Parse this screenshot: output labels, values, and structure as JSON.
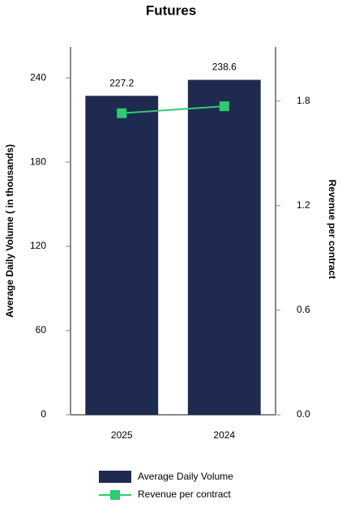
{
  "chart_data": {
    "type": "bar",
    "title": "Futures",
    "categories": [
      "2025",
      "2024"
    ],
    "ylabel": "Average Daily Volume ( in thousands)",
    "y2label": "Revenue per contract",
    "ylim": [
      0,
      262
    ],
    "yticks": [
      0,
      60,
      120,
      180,
      240
    ],
    "y2lim": [
      0,
      2.11
    ],
    "y2ticks": [
      {
        "value": 0,
        "label": "0.0"
      },
      0.6,
      1.2,
      1.8
    ],
    "legend": "bottom",
    "series": [
      {
        "name": "Average Daily Volume",
        "type": "bar",
        "color": "#1f2a50",
        "values": [
          227.2,
          238.6
        ]
      },
      {
        "name": "Revenue per contract",
        "type": "line",
        "axis": "y2",
        "color": "#2ecc71",
        "values": [
          1.73,
          1.77
        ]
      }
    ]
  }
}
